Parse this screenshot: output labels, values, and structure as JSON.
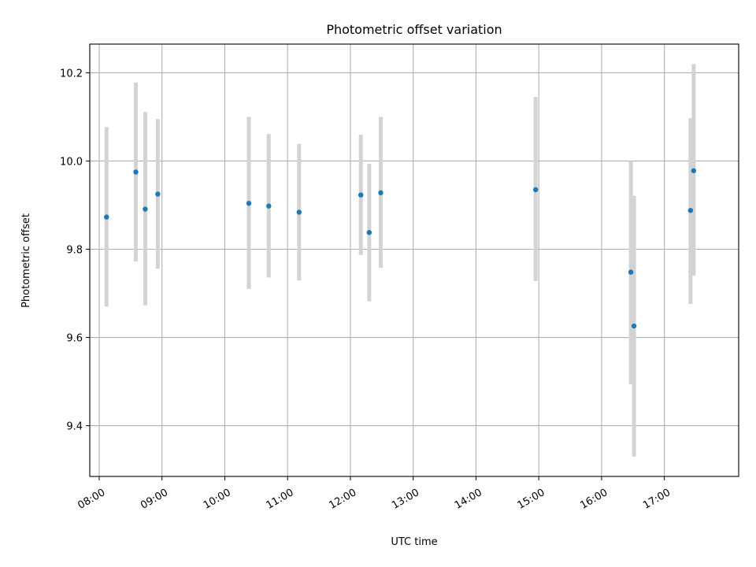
{
  "chart_data": {
    "type": "scatter",
    "title": "Photometric offset variation",
    "xlabel": "UTC time",
    "ylabel": "Photometric offset",
    "xlim": [
      "07:51",
      "18:11"
    ],
    "ylim": [
      9.285,
      10.265
    ],
    "grid": true,
    "x_ticks": [
      "08:00",
      "09:00",
      "10:00",
      "11:00",
      "12:00",
      "13:00",
      "14:00",
      "15:00",
      "16:00",
      "17:00"
    ],
    "y_ticks": [
      9.4,
      9.6,
      9.8,
      10.0,
      10.2
    ],
    "y_tick_labels": [
      "9.4",
      "9.6",
      "9.8",
      "10.0",
      "10.2"
    ],
    "series": [
      {
        "points": [
          {
            "x": "08:07",
            "y": 9.873,
            "err_low": 9.67,
            "err_high": 10.077
          },
          {
            "x": "08:35",
            "y": 9.975,
            "err_low": 9.772,
            "err_high": 10.178
          },
          {
            "x": "08:44",
            "y": 9.891,
            "err_low": 9.673,
            "err_high": 10.111
          },
          {
            "x": "08:56",
            "y": 9.925,
            "err_low": 9.756,
            "err_high": 10.095
          },
          {
            "x": "10:23",
            "y": 9.904,
            "err_low": 9.71,
            "err_high": 10.1
          },
          {
            "x": "10:42",
            "y": 9.898,
            "err_low": 9.736,
            "err_high": 10.061
          },
          {
            "x": "11:11",
            "y": 9.884,
            "err_low": 9.729,
            "err_high": 10.039
          },
          {
            "x": "12:10",
            "y": 9.923,
            "err_low": 9.787,
            "err_high": 10.06
          },
          {
            "x": "12:18",
            "y": 9.838,
            "err_low": 9.682,
            "err_high": 9.994
          },
          {
            "x": "12:29",
            "y": 9.928,
            "err_low": 9.758,
            "err_high": 10.1
          },
          {
            "x": "14:57",
            "y": 9.935,
            "err_low": 9.728,
            "err_high": 10.145
          },
          {
            "x": "16:28",
            "y": 9.748,
            "err_low": 9.494,
            "err_high": 10.0
          },
          {
            "x": "16:31",
            "y": 9.626,
            "err_low": 9.33,
            "err_high": 9.921
          },
          {
            "x": "17:25",
            "y": 9.888,
            "err_low": 9.676,
            "err_high": 10.097
          },
          {
            "x": "17:28",
            "y": 9.978,
            "err_low": 9.74,
            "err_high": 10.22
          }
        ],
        "point_color": "#1f77b4",
        "error_color": "#d3d3d3"
      }
    ],
    "colors": {
      "grid": "#b0b0b0",
      "axes": "#000000",
      "background": "#ffffff"
    }
  }
}
